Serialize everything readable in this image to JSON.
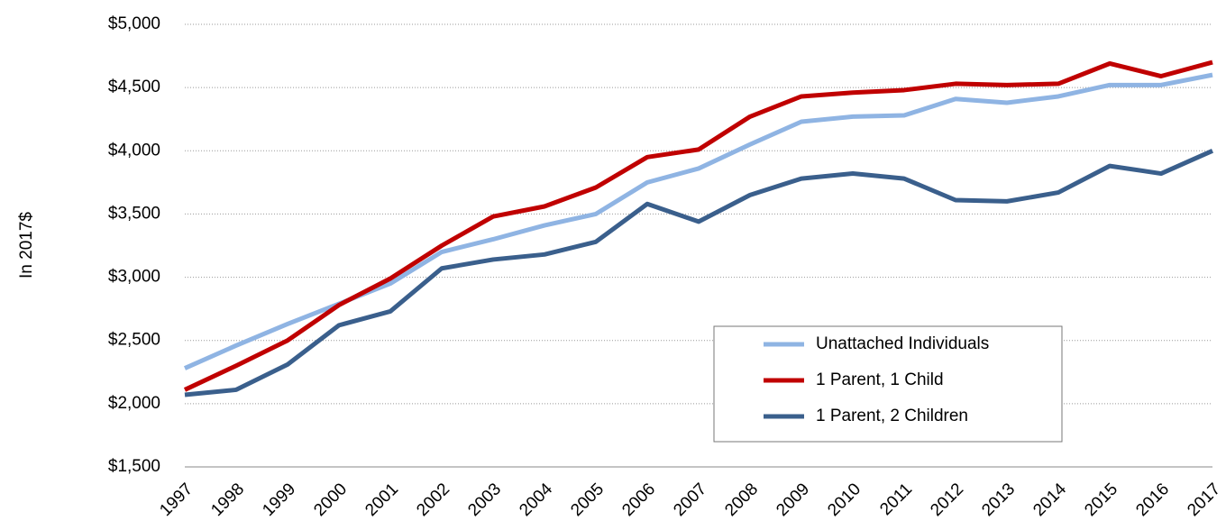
{
  "chart_data": {
    "type": "line",
    "y_label": "In 2017$",
    "categories": [
      "1997",
      "1998",
      "1999",
      "2000",
      "2001",
      "2002",
      "2003",
      "2004",
      "2005",
      "2006",
      "2007",
      "2008",
      "2009",
      "2010",
      "2011",
      "2012",
      "2013",
      "2014",
      "2015",
      "2016",
      "2017"
    ],
    "series": [
      {
        "name": "Unattached Individuals",
        "color": "#8fb4e3",
        "values": [
          2280,
          2460,
          2630,
          2790,
          2950,
          3200,
          3300,
          3410,
          3500,
          3750,
          3860,
          4050,
          4230,
          4270,
          4280,
          4410,
          4380,
          4430,
          4520,
          4520,
          4600
        ]
      },
      {
        "name": "1 Parent, 1 Child",
        "color": "#c00000",
        "values": [
          2110,
          2300,
          2500,
          2780,
          2990,
          3250,
          3480,
          3560,
          3710,
          3950,
          4010,
          4270,
          4430,
          4460,
          4480,
          4530,
          4520,
          4530,
          4690,
          4590,
          4700
        ]
      },
      {
        "name": "1 Parent, 2 Children",
        "color": "#3a5f8c",
        "values": [
          2070,
          2110,
          2310,
          2620,
          2730,
          3070,
          3140,
          3180,
          3280,
          3580,
          3440,
          3650,
          3780,
          3820,
          3780,
          3610,
          3600,
          3670,
          3880,
          3820,
          4000
        ]
      }
    ],
    "ylim": [
      1500,
      5000
    ],
    "yticks": [
      {
        "value": 1500,
        "label": "$1,500"
      },
      {
        "value": 2000,
        "label": "$2,000"
      },
      {
        "value": 2500,
        "label": "$2,500"
      },
      {
        "value": 3000,
        "label": "$3,000"
      },
      {
        "value": 3500,
        "label": "$3,500"
      },
      {
        "value": 4000,
        "label": "$4,000"
      },
      {
        "value": 4500,
        "label": "$4,500"
      },
      {
        "value": 5000,
        "label": "$5,000"
      }
    ],
    "grid": true,
    "legend": "lower right"
  }
}
